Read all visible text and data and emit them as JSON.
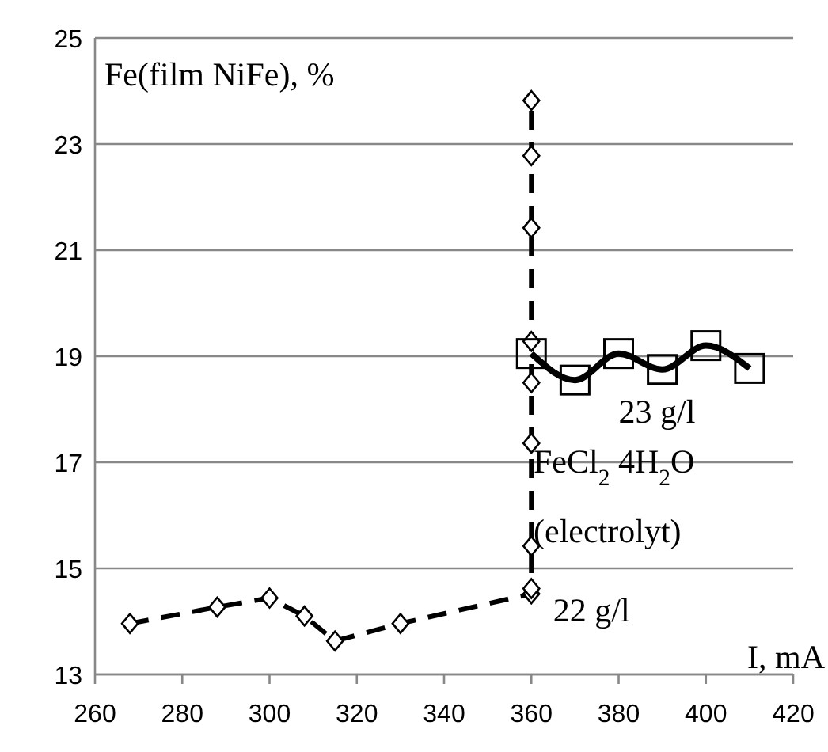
{
  "chart_data": {
    "type": "line",
    "ylabel": "Fe(film NiFe), %",
    "xlabel": "I, mA",
    "xlim": [
      260,
      420
    ],
    "xticks": [
      260,
      280,
      300,
      320,
      340,
      360,
      380,
      400,
      420
    ],
    "ylim": [
      13,
      25
    ],
    "yticks": [
      13,
      15,
      17,
      19,
      21,
      23,
      25
    ],
    "grid": "y",
    "series": [
      {
        "color": "#000000",
        "marker": "diamond",
        "line_style": "dashed",
        "x": [
          268,
          288,
          300,
          308,
          315,
          330,
          360,
          360,
          360,
          360,
          360,
          360,
          360,
          360,
          360
        ],
        "values": [
          13.96,
          14.27,
          14.44,
          14.1,
          13.63,
          13.96,
          14.52,
          14.62,
          15.42,
          17.36,
          18.5,
          19.28,
          21.42,
          22.78,
          23.82
        ]
      },
      {
        "color": "#000000",
        "marker": "square",
        "line_style": "solid",
        "x": [
          360,
          370,
          380,
          390,
          400,
          410
        ],
        "values": [
          19.05,
          18.55,
          19.05,
          18.75,
          19.2,
          18.77
        ]
      }
    ],
    "annotations": [
      "23 g/l",
      "FeCl$_{2}$ 4H$_{2}$O",
      "(electrolyt)",
      "22 g/l"
    ]
  }
}
